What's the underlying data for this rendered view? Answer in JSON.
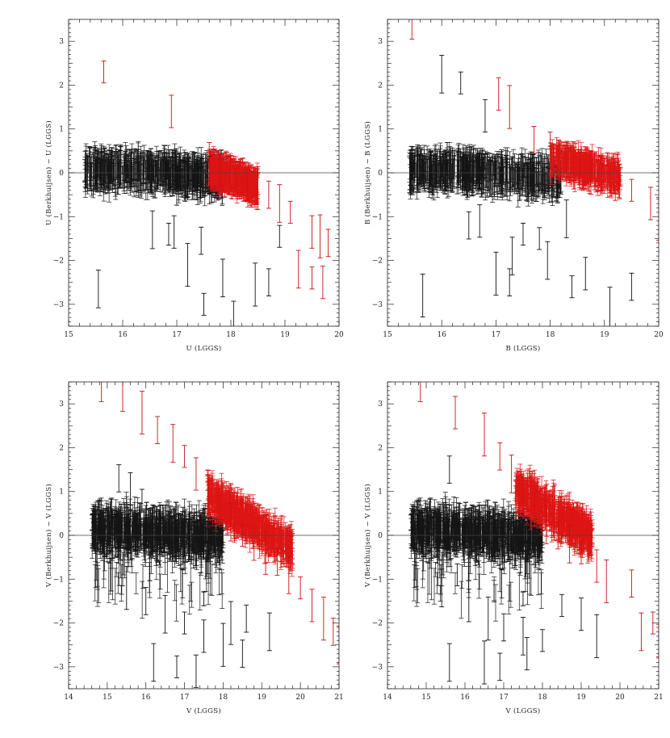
{
  "chart_data": [
    {
      "type": "scatter",
      "xlabel": "U (LGGS)",
      "ylabel": "U (Berkhuijsen) − U (LGGS)",
      "xlim": [
        15,
        20
      ],
      "ylim": [
        -3.5,
        3.5
      ],
      "xticks": [
        15,
        16,
        17,
        18,
        19,
        20
      ],
      "yticks": [
        -3,
        -2,
        -1,
        0,
        1,
        2,
        3
      ],
      "reference_line_y": 0,
      "error_bars": true,
      "series": [
        {
          "color": "#111111",
          "points": [
            [
              15.3,
              0.05
            ],
            [
              15.6,
              0.1
            ],
            [
              15.9,
              0.0
            ],
            [
              16.2,
              0.15
            ],
            [
              16.5,
              0.05
            ],
            [
              16.8,
              0.1
            ],
            [
              17.0,
              0.0
            ],
            [
              17.2,
              -0.05
            ],
            [
              17.4,
              -0.1
            ],
            [
              17.6,
              -0.05
            ],
            [
              16.0,
              -0.1
            ],
            [
              16.6,
              -0.2
            ],
            [
              17.0,
              -0.25
            ],
            [
              17.3,
              -0.3
            ],
            [
              16.55,
              -1.3
            ],
            [
              16.85,
              -1.4
            ],
            [
              16.95,
              -1.35
            ],
            [
              17.2,
              -2.1
            ],
            [
              17.45,
              -1.55
            ],
            [
              17.85,
              -2.4
            ],
            [
              17.5,
              -3.0
            ],
            [
              18.05,
              -3.3
            ],
            [
              18.45,
              -2.55
            ],
            [
              18.7,
              -2.5
            ],
            [
              15.55,
              -2.65
            ],
            [
              18.9,
              -1.45
            ]
          ]
        },
        {
          "color": "#cc1111",
          "points": [
            [
              15.65,
              2.3
            ],
            [
              16.9,
              1.4
            ],
            [
              17.6,
              0.2
            ],
            [
              17.8,
              0.1
            ],
            [
              18.0,
              -0.05
            ],
            [
              18.1,
              -0.15
            ],
            [
              18.3,
              -0.25
            ],
            [
              18.5,
              -0.35
            ],
            [
              18.7,
              -0.5
            ],
            [
              18.9,
              -0.7
            ],
            [
              19.1,
              -0.9
            ],
            [
              19.5,
              -1.35
            ],
            [
              19.65,
              -1.45
            ],
            [
              19.8,
              -1.6
            ],
            [
              19.25,
              -2.2
            ],
            [
              19.5,
              -2.4
            ],
            [
              19.7,
              -2.5
            ]
          ]
        }
      ]
    },
    {
      "type": "scatter",
      "xlabel": "B (LGGS)",
      "ylabel": "B (Berkhuijsen) − B (LGGS)",
      "xlim": [
        15,
        20
      ],
      "ylim": [
        -3.5,
        3.5
      ],
      "xticks": [
        15,
        16,
        17,
        18,
        19,
        20
      ],
      "yticks": [
        -3,
        -2,
        -1,
        0,
        1,
        2,
        3
      ],
      "reference_line_y": 0,
      "error_bars": true,
      "series": [
        {
          "color": "#111111",
          "points": [
            [
              15.5,
              0.15
            ],
            [
              15.8,
              0.1
            ],
            [
              16.1,
              0.2
            ],
            [
              16.4,
              0.15
            ],
            [
              16.7,
              0.05
            ],
            [
              17.0,
              0.1
            ],
            [
              17.3,
              0.0
            ],
            [
              17.6,
              -0.05
            ],
            [
              17.9,
              -0.1
            ],
            [
              16.0,
              2.25
            ],
            [
              16.35,
              2.05
            ],
            [
              16.8,
              1.3
            ],
            [
              15.65,
              -2.8
            ],
            [
              16.5,
              -1.2
            ],
            [
              17.3,
              -1.9
            ],
            [
              17.5,
              -1.4
            ],
            [
              16.7,
              -1.1
            ],
            [
              17.0,
              -2.3
            ],
            [
              17.25,
              -2.5
            ],
            [
              17.95,
              -2.0
            ],
            [
              18.4,
              -2.6
            ],
            [
              18.65,
              -2.3
            ],
            [
              19.1,
              -3.1
            ],
            [
              19.5,
              -2.6
            ],
            [
              18.3,
              -1.05
            ],
            [
              17.8,
              -1.5
            ]
          ]
        },
        {
          "color": "#cc1111",
          "points": [
            [
              15.45,
              3.3
            ],
            [
              17.05,
              1.8
            ],
            [
              17.25,
              1.5
            ],
            [
              17.7,
              0.75
            ],
            [
              18.0,
              0.5
            ],
            [
              18.3,
              0.3
            ],
            [
              18.55,
              0.1
            ],
            [
              18.75,
              0.0
            ],
            [
              18.95,
              -0.1
            ],
            [
              19.2,
              -0.2
            ],
            [
              19.5,
              -0.4
            ],
            [
              19.85,
              -0.7
            ],
            [
              20.0,
              -1.05
            ]
          ]
        }
      ]
    },
    {
      "type": "scatter",
      "xlabel": "V (LGGS)",
      "ylabel": "V (Berkhuijsen) − V (LGGS)",
      "xlim": [
        14,
        21
      ],
      "ylim": [
        -3.5,
        3.5
      ],
      "xticks": [
        14,
        15,
        16,
        17,
        18,
        19,
        20,
        21
      ],
      "yticks": [
        -3,
        -2,
        -1,
        0,
        1,
        2,
        3
      ],
      "reference_line_y": 0,
      "error_bars": true,
      "series": [
        {
          "color": "#111111",
          "points": [
            [
              14.8,
              0.15
            ],
            [
              15.2,
              0.1
            ],
            [
              15.6,
              0.2
            ],
            [
              16.0,
              0.1
            ],
            [
              16.4,
              0.05
            ],
            [
              16.8,
              0.1
            ],
            [
              17.2,
              0.0
            ],
            [
              17.6,
              -0.1
            ],
            [
              15.3,
              1.3
            ],
            [
              15.6,
              1.0
            ],
            [
              15.9,
              0.8
            ],
            [
              15.1,
              -0.9
            ],
            [
              15.5,
              -1.2
            ],
            [
              16.0,
              -1.5
            ],
            [
              16.5,
              -1.8
            ],
            [
              17.0,
              -2.0
            ],
            [
              17.5,
              -2.3
            ],
            [
              18.0,
              -2.5
            ],
            [
              18.5,
              -2.7
            ],
            [
              16.2,
              -2.9
            ],
            [
              16.8,
              -3.0
            ],
            [
              17.3,
              -3.1
            ],
            [
              18.2,
              -2.0
            ],
            [
              18.6,
              -1.9
            ],
            [
              19.2,
              -2.2
            ]
          ]
        },
        {
          "color": "#cc1111",
          "points": [
            [
              14.85,
              3.3
            ],
            [
              15.4,
              3.2
            ],
            [
              15.9,
              2.8
            ],
            [
              16.3,
              2.4
            ],
            [
              16.7,
              2.1
            ],
            [
              17.0,
              1.8
            ],
            [
              17.3,
              1.4
            ],
            [
              17.6,
              1.0
            ],
            [
              17.9,
              0.6
            ],
            [
              18.2,
              0.3
            ],
            [
              18.5,
              0.0
            ],
            [
              18.8,
              -0.2
            ],
            [
              19.1,
              -0.4
            ],
            [
              19.4,
              -0.6
            ],
            [
              19.7,
              -0.9
            ],
            [
              20.0,
              -1.2
            ],
            [
              20.3,
              -1.6
            ],
            [
              20.6,
              -1.9
            ],
            [
              20.85,
              -2.2
            ],
            [
              21.0,
              -2.5
            ]
          ]
        }
      ]
    },
    {
      "type": "scatter",
      "xlabel": "V (LGGS)",
      "ylabel": "V (Berkhuijsen) − V (LGGS)",
      "xlim": [
        14,
        21
      ],
      "ylim": [
        -3.5,
        3.5
      ],
      "xticks": [
        14,
        15,
        16,
        17,
        18,
        19,
        20,
        21
      ],
      "yticks": [
        -3,
        -2,
        -1,
        0,
        1,
        2,
        3
      ],
      "reference_line_y": 0,
      "error_bars": true,
      "series": [
        {
          "color": "#111111",
          "points": [
            [
              14.8,
              0.2
            ],
            [
              15.2,
              0.15
            ],
            [
              15.6,
              0.2
            ],
            [
              16.0,
              0.15
            ],
            [
              16.4,
              0.1
            ],
            [
              16.8,
              0.1
            ],
            [
              17.2,
              0.0
            ],
            [
              17.6,
              -0.1
            ],
            [
              15.6,
              1.5
            ],
            [
              15.4,
              -1.2
            ],
            [
              15.8,
              -0.9
            ],
            [
              16.1,
              -1.6
            ],
            [
              16.6,
              -1.9
            ],
            [
              17.0,
              -2.1
            ],
            [
              17.5,
              -2.3
            ],
            [
              18.0,
              -2.4
            ],
            [
              17.6,
              -2.7
            ],
            [
              16.5,
              -2.9
            ],
            [
              16.9,
              -3.0
            ],
            [
              15.6,
              -2.9
            ],
            [
              18.5,
              -1.6
            ],
            [
              19.0,
              -1.8
            ],
            [
              19.4,
              -2.3
            ]
          ]
        },
        {
          "color": "#cc1111",
          "points": [
            [
              14.85,
              3.3
            ],
            [
              15.75,
              2.8
            ],
            [
              16.5,
              2.3
            ],
            [
              16.9,
              1.8
            ],
            [
              17.2,
              1.4
            ],
            [
              17.5,
              1.0
            ],
            [
              17.8,
              0.6
            ],
            [
              18.1,
              0.3
            ],
            [
              18.4,
              0.0
            ],
            [
              18.7,
              -0.2
            ],
            [
              19.0,
              -0.4
            ],
            [
              19.4,
              -0.7
            ],
            [
              19.65,
              -1.05
            ],
            [
              20.3,
              -1.1
            ],
            [
              20.55,
              -2.2
            ],
            [
              20.85,
              -2.0
            ],
            [
              21.0,
              -2.4
            ]
          ]
        }
      ]
    }
  ]
}
